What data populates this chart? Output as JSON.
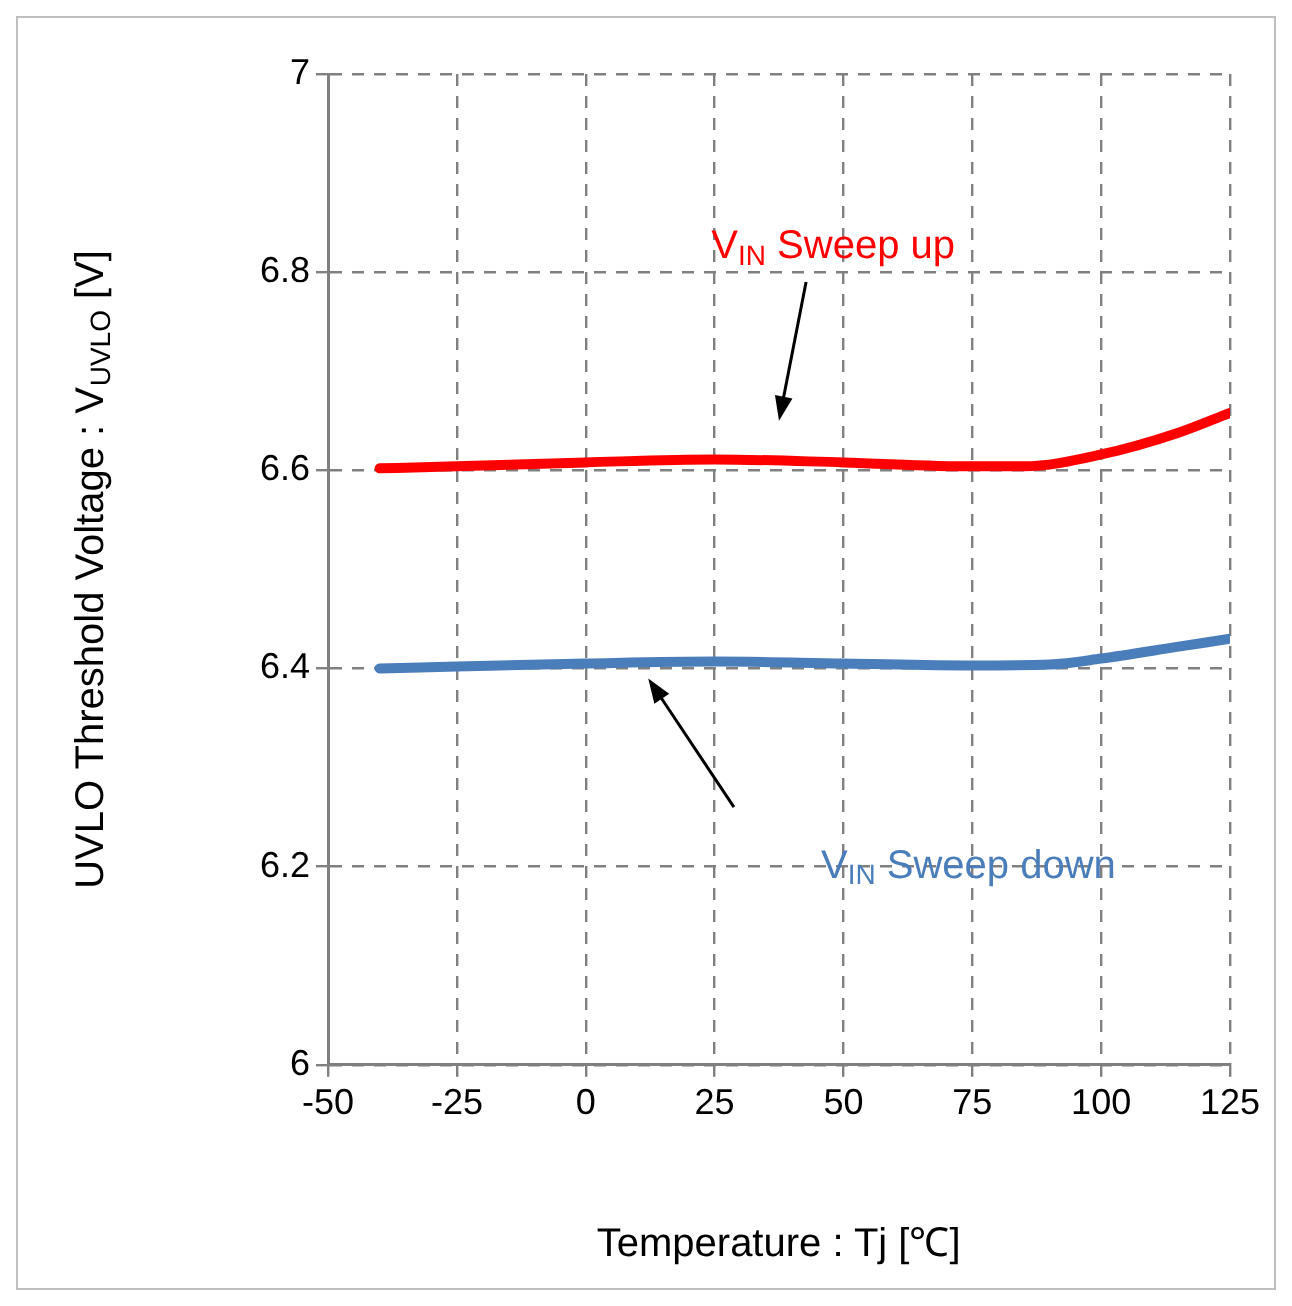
{
  "chart_data": {
    "type": "line",
    "xlabel": "Temperature : Tj [℃]",
    "ylabel": "UVLO Threshold Voltage : V$_{UVLO}$ [V]",
    "xlim": [
      -50,
      125
    ],
    "xticks": [
      -50,
      -25,
      0,
      25,
      50,
      75,
      100,
      125
    ],
    "ylim": [
      6,
      7
    ],
    "yticks": [
      6,
      6.2,
      6.4,
      6.6,
      6.8,
      7
    ],
    "grid": true,
    "legend": false,
    "marker": "none",
    "line_style": "solid",
    "series": [
      {
        "name": "V$_{IN}$ Sweep up",
        "color": "#ff0000",
        "x": [
          -40,
          -25,
          0,
          25,
          50,
          75,
          85,
          100,
          115,
          125
        ],
        "values": [
          6.602,
          6.604,
          6.608,
          6.611,
          6.608,
          6.604,
          6.604,
          6.616,
          6.638,
          6.658
        ]
      },
      {
        "name": "V$_{IN}$ Sweep down",
        "color": "#4a7ebb",
        "x": [
          -40,
          -25,
          0,
          25,
          50,
          75,
          90,
          100,
          115,
          125
        ],
        "values": [
          6.4,
          6.402,
          6.405,
          6.407,
          6.405,
          6.403,
          6.404,
          6.41,
          6.422,
          6.43
        ]
      }
    ]
  }
}
